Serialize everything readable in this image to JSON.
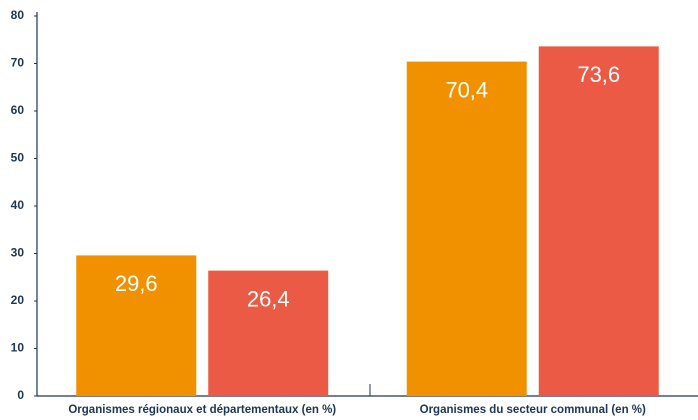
{
  "chart_data": {
    "type": "bar",
    "categories": [
      "Organismes régionaux et départementaux (en %)",
      "Organismes du secteur communal (en %)"
    ],
    "series": [
      {
        "color": "#f29100",
        "values": [
          29.6,
          70.4
        ],
        "value_labels": [
          "29,6",
          "70,4"
        ]
      },
      {
        "color": "#eb5a44",
        "values": [
          26.4,
          73.6
        ],
        "value_labels": [
          "26,4",
          "73,6"
        ]
      }
    ],
    "ylim": [
      0,
      80
    ],
    "yticks": [
      0,
      10,
      20,
      30,
      40,
      50,
      60,
      70,
      80
    ],
    "grid": false
  }
}
